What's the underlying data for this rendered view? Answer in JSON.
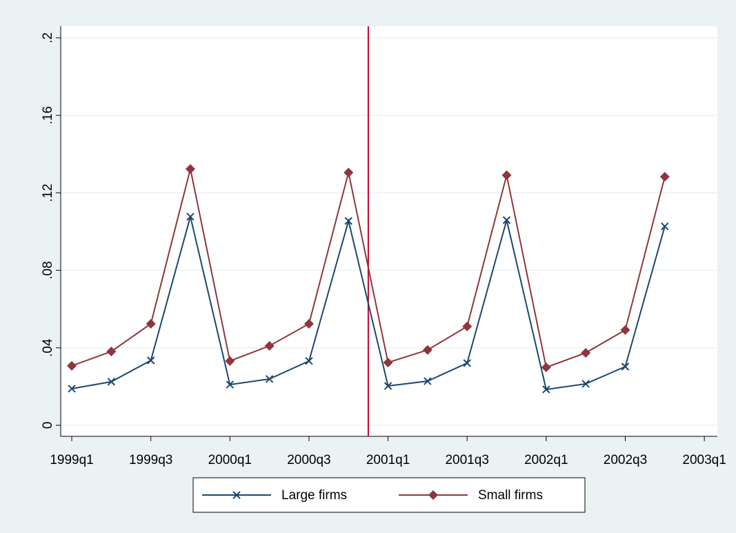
{
  "chart_data": {
    "type": "line",
    "x": [
      "1999q1",
      "1999q2",
      "1999q3",
      "1999q4",
      "2000q1",
      "2000q2",
      "2000q3",
      "2000q4",
      "2001q1",
      "2001q2",
      "2001q3",
      "2001q4",
      "2002q1",
      "2002q2",
      "2002q3",
      "2002q4"
    ],
    "series": [
      {
        "name": "Large firms",
        "color": "#1a476f",
        "marker": "x",
        "values": [
          0.0189,
          0.0225,
          0.0335,
          0.1077,
          0.021,
          0.0239,
          0.0332,
          0.1055,
          0.0203,
          0.0228,
          0.0321,
          0.1059,
          0.0185,
          0.0214,
          0.0303,
          0.1027
        ]
      },
      {
        "name": "Small firms",
        "color": "#90353b",
        "marker": "diamond",
        "values": [
          0.0307,
          0.0381,
          0.0524,
          0.1323,
          0.0332,
          0.041,
          0.0524,
          0.1305,
          0.0324,
          0.0389,
          0.051,
          0.1291,
          0.0299,
          0.0374,
          0.0492,
          0.1283
        ]
      }
    ],
    "xlim": [
      "1998q4.72",
      "2003q1.33"
    ],
    "xticks": [
      "1999q1",
      "1999q3",
      "2000q1",
      "2000q3",
      "2001q1",
      "2001q3",
      "2002q1",
      "2002q3",
      "2003q1"
    ],
    "ylim": [
      -0.0057,
      0.206
    ],
    "yticks": [
      0,
      {
        "value": 0.04,
        "label": ".04"
      },
      {
        "value": 0.08,
        "label": ".08"
      },
      {
        "value": 0.12,
        "label": ".12"
      },
      {
        "value": 0.16,
        "label": ".16"
      },
      {
        "value": 0.2,
        "label": ".2"
      }
    ],
    "grid": true,
    "vline": {
      "x": "2000q4.5",
      "color": "#c10534"
    },
    "legend": "bottom"
  }
}
